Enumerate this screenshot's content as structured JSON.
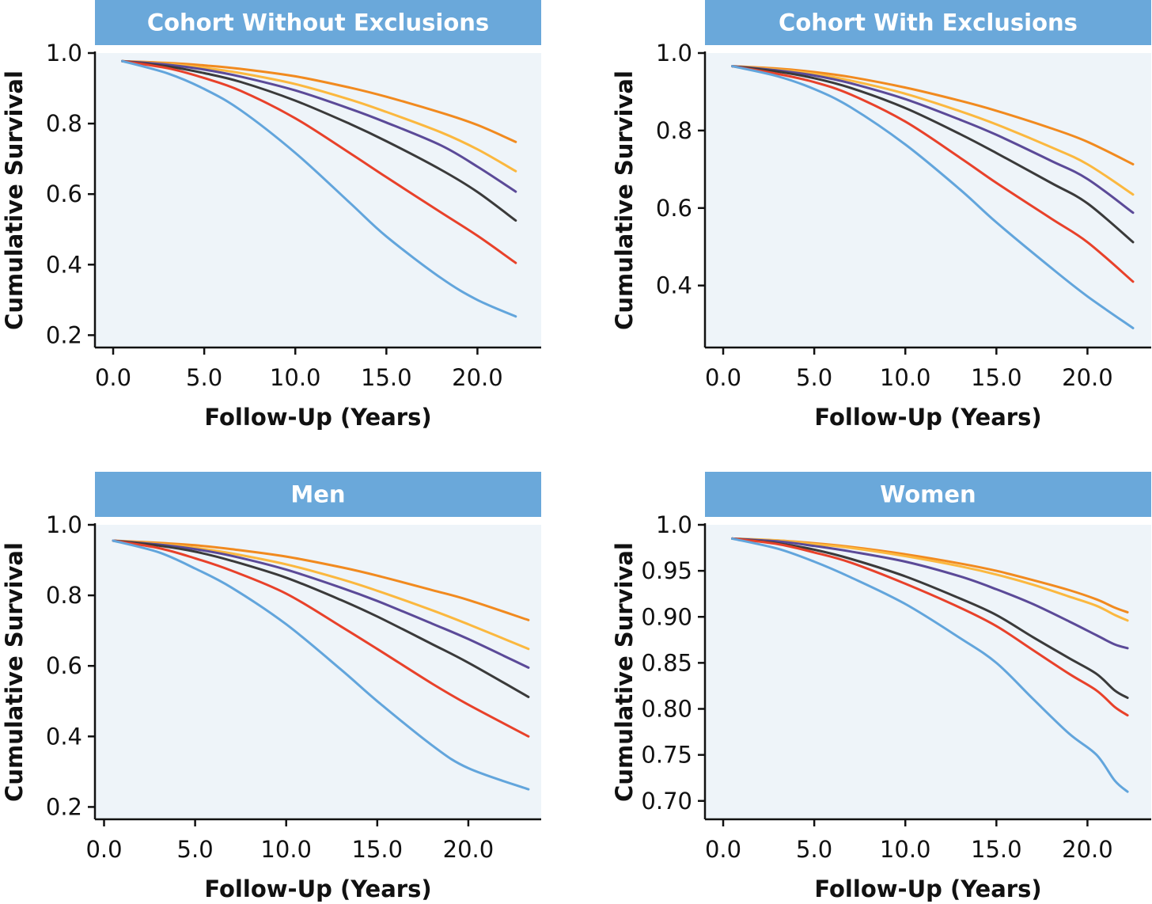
{
  "colors": {
    "header_fill": "#6aa8da",
    "plot_background": "#eef4f9",
    "axis": "#111111"
  },
  "series_colors": [
    "#f18a1f",
    "#fbb83f",
    "#5b4a98",
    "#3a3a3a",
    "#e8412a",
    "#62a5dc"
  ],
  "chart_data": [
    {
      "type": "line",
      "title": "Cohort Without Exclusions",
      "xlabel": "Follow-Up (Years)",
      "ylabel": "Cumulative Survival",
      "xlim": [
        -1,
        23.5
      ],
      "ylim": [
        0.165,
        1.0
      ],
      "xticks": [
        0,
        5,
        10,
        15,
        20
      ],
      "xtick_labels": [
        "0.0",
        "5.0",
        "10.0",
        "15.0",
        "20.0"
      ],
      "yticks": [
        0.2,
        0.4,
        0.6,
        0.8,
        1.0
      ],
      "ytick_labels": [
        "0.2",
        "0.4",
        "0.6",
        "0.8",
        "1.0"
      ],
      "x": [
        0.5,
        3,
        5,
        7,
        10,
        13,
        15,
        18,
        20,
        22.1
      ],
      "series": [
        {
          "values": [
            0.977,
            0.972,
            0.965,
            0.955,
            0.934,
            0.902,
            0.876,
            0.831,
            0.796,
            0.748
          ]
        },
        {
          "values": [
            0.977,
            0.969,
            0.958,
            0.943,
            0.912,
            0.868,
            0.833,
            0.775,
            0.727,
            0.665
          ]
        },
        {
          "values": [
            0.977,
            0.967,
            0.953,
            0.933,
            0.894,
            0.842,
            0.803,
            0.738,
            0.678,
            0.607
          ]
        },
        {
          "values": [
            0.977,
            0.962,
            0.943,
            0.918,
            0.865,
            0.799,
            0.75,
            0.669,
            0.606,
            0.525
          ]
        },
        {
          "values": [
            0.977,
            0.957,
            0.929,
            0.893,
            0.815,
            0.716,
            0.648,
            0.548,
            0.482,
            0.405
          ]
        },
        {
          "values": [
            0.977,
            0.942,
            0.898,
            0.838,
            0.717,
            0.575,
            0.48,
            0.362,
            0.3,
            0.253
          ]
        }
      ]
    },
    {
      "type": "line",
      "title": "Cohort With Exclusions",
      "xlabel": "Follow-Up (Years)",
      "ylabel": "Cumulative Survival",
      "xlim": [
        -1,
        23.5
      ],
      "ylim": [
        0.24,
        1.0
      ],
      "xticks": [
        0,
        5,
        10,
        15,
        20
      ],
      "xtick_labels": [
        "0.0",
        "5.0",
        "10.0",
        "15.0",
        "20.0"
      ],
      "yticks": [
        0.4,
        0.6,
        0.8,
        1.0
      ],
      "ytick_labels": [
        "0.4",
        "0.6",
        "0.8",
        "1.0"
      ],
      "x": [
        0.5,
        3,
        5,
        7,
        10,
        13,
        15,
        18,
        20,
        22.5
      ],
      "series": [
        {
          "values": [
            0.966,
            0.96,
            0.951,
            0.938,
            0.911,
            0.877,
            0.851,
            0.806,
            0.771,
            0.713
          ]
        },
        {
          "values": [
            0.966,
            0.957,
            0.946,
            0.929,
            0.895,
            0.85,
            0.816,
            0.757,
            0.713,
            0.635
          ]
        },
        {
          "values": [
            0.966,
            0.955,
            0.942,
            0.922,
            0.881,
            0.828,
            0.789,
            0.722,
            0.675,
            0.588
          ]
        },
        {
          "values": [
            0.966,
            0.952,
            0.935,
            0.91,
            0.858,
            0.791,
            0.742,
            0.665,
            0.612,
            0.512
          ]
        },
        {
          "values": [
            0.966,
            0.946,
            0.925,
            0.893,
            0.823,
            0.73,
            0.665,
            0.573,
            0.512,
            0.41
          ]
        },
        {
          "values": [
            0.966,
            0.94,
            0.907,
            0.86,
            0.764,
            0.648,
            0.563,
            0.446,
            0.372,
            0.29
          ]
        }
      ]
    },
    {
      "type": "line",
      "title": "Men",
      "xlabel": "Follow-Up (Years)",
      "ylabel": "Cumulative Survival",
      "xlim": [
        -0.5,
        24
      ],
      "ylim": [
        0.165,
        1.0
      ],
      "xticks": [
        0,
        5,
        10,
        15,
        20
      ],
      "xtick_labels": [
        "0.0",
        "5.0",
        "10.0",
        "15.0",
        "20.0"
      ],
      "yticks": [
        0.2,
        0.4,
        0.6,
        0.8,
        1.0
      ],
      "ytick_labels": [
        "0.2",
        "0.4",
        "0.6",
        "0.8",
        "1.0"
      ],
      "x": [
        0.5,
        3,
        5,
        7,
        10,
        13,
        15,
        18,
        20,
        23.3
      ],
      "series": [
        {
          "values": [
            0.955,
            0.949,
            0.942,
            0.931,
            0.91,
            0.88,
            0.856,
            0.815,
            0.787,
            0.73
          ]
        },
        {
          "values": [
            0.955,
            0.946,
            0.935,
            0.919,
            0.888,
            0.846,
            0.813,
            0.758,
            0.718,
            0.648
          ]
        },
        {
          "values": [
            0.955,
            0.944,
            0.931,
            0.912,
            0.873,
            0.822,
            0.784,
            0.72,
            0.676,
            0.595
          ]
        },
        {
          "values": [
            0.955,
            0.941,
            0.924,
            0.898,
            0.85,
            0.787,
            0.74,
            0.662,
            0.609,
            0.512
          ]
        },
        {
          "values": [
            0.955,
            0.934,
            0.905,
            0.87,
            0.805,
            0.712,
            0.648,
            0.55,
            0.49,
            0.4
          ]
        },
        {
          "values": [
            0.955,
            0.922,
            0.876,
            0.822,
            0.718,
            0.59,
            0.5,
            0.375,
            0.31,
            0.25
          ]
        }
      ]
    },
    {
      "type": "line",
      "title": "Women",
      "xlabel": "Follow-Up (Years)",
      "ylabel": "Cumulative Survival",
      "xlim": [
        -1,
        23.5
      ],
      "ylim": [
        0.68,
        1.0
      ],
      "xticks": [
        0,
        5,
        10,
        15,
        20
      ],
      "xtick_labels": [
        "0.0",
        "5.0",
        "10.0",
        "15.0",
        "20.0"
      ],
      "yticks": [
        0.7,
        0.75,
        0.8,
        0.85,
        0.9,
        0.95,
        1.0
      ],
      "ytick_labels": [
        "0.70",
        "0.75",
        "0.80",
        "0.85",
        "0.90",
        "0.95",
        "1.0"
      ],
      "x": [
        0.5,
        3,
        5,
        7,
        10,
        13,
        15,
        17,
        19,
        20.5,
        21.5,
        22.2
      ],
      "series": [
        {
          "values": [
            0.985,
            0.983,
            0.98,
            0.976,
            0.968,
            0.958,
            0.95,
            0.94,
            0.929,
            0.919,
            0.91,
            0.905
          ]
        },
        {
          "values": [
            0.985,
            0.983,
            0.979,
            0.975,
            0.966,
            0.955,
            0.946,
            0.935,
            0.922,
            0.912,
            0.902,
            0.896
          ]
        },
        {
          "values": [
            0.985,
            0.982,
            0.977,
            0.971,
            0.96,
            0.944,
            0.93,
            0.914,
            0.895,
            0.88,
            0.87,
            0.866
          ]
        },
        {
          "values": [
            0.985,
            0.98,
            0.973,
            0.963,
            0.944,
            0.92,
            0.902,
            0.878,
            0.855,
            0.838,
            0.82,
            0.812
          ]
        },
        {
          "values": [
            0.985,
            0.979,
            0.97,
            0.959,
            0.936,
            0.91,
            0.89,
            0.864,
            0.838,
            0.82,
            0.802,
            0.793
          ]
        },
        {
          "values": [
            0.985,
            0.974,
            0.96,
            0.943,
            0.914,
            0.877,
            0.85,
            0.811,
            0.773,
            0.75,
            0.722,
            0.71
          ]
        }
      ]
    }
  ]
}
